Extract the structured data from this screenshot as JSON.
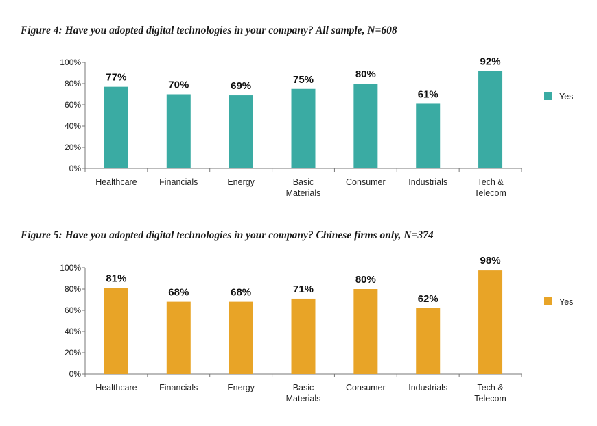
{
  "chart_data": [
    {
      "type": "bar",
      "title": "Figure 4: Have you adopted digital technologies in your company? All sample, N=608",
      "categories": [
        [
          "Healthcare"
        ],
        [
          "Financials"
        ],
        [
          "Energy"
        ],
        [
          "Basic",
          "Materials"
        ],
        [
          "Consumer"
        ],
        [
          "Industrials"
        ],
        [
          "Tech &",
          "Telecom"
        ]
      ],
      "series": [
        {
          "name": "Yes",
          "values": [
            77,
            70,
            69,
            75,
            80,
            61,
            92
          ],
          "color": "#3aaba3"
        }
      ],
      "data_labels": [
        "77%",
        "70%",
        "69%",
        "75%",
        "80%",
        "61%",
        "92%"
      ],
      "yticks": [
        "0%",
        "20%",
        "40%",
        "60%",
        "80%",
        "100%"
      ],
      "ylim": [
        0,
        100
      ],
      "legend_position": "right"
    },
    {
      "type": "bar",
      "title": "Figure 5: Have you adopted digital technologies in your company? Chinese firms only, N=374",
      "categories": [
        [
          "Healthcare"
        ],
        [
          "Financials"
        ],
        [
          "Energy"
        ],
        [
          "Basic",
          "Materials"
        ],
        [
          "Consumer"
        ],
        [
          "Industrials"
        ],
        [
          "Tech &",
          "Telecom"
        ]
      ],
      "series": [
        {
          "name": "Yes",
          "values": [
            81,
            68,
            68,
            71,
            80,
            62,
            98
          ],
          "color": "#e8a427"
        }
      ],
      "data_labels": [
        "81%",
        "68%",
        "68%",
        "71%",
        "80%",
        "62%",
        "98%"
      ],
      "yticks": [
        "0%",
        "20%",
        "40%",
        "60%",
        "80%",
        "100%"
      ],
      "ylim": [
        0,
        100
      ],
      "legend_position": "right"
    }
  ]
}
